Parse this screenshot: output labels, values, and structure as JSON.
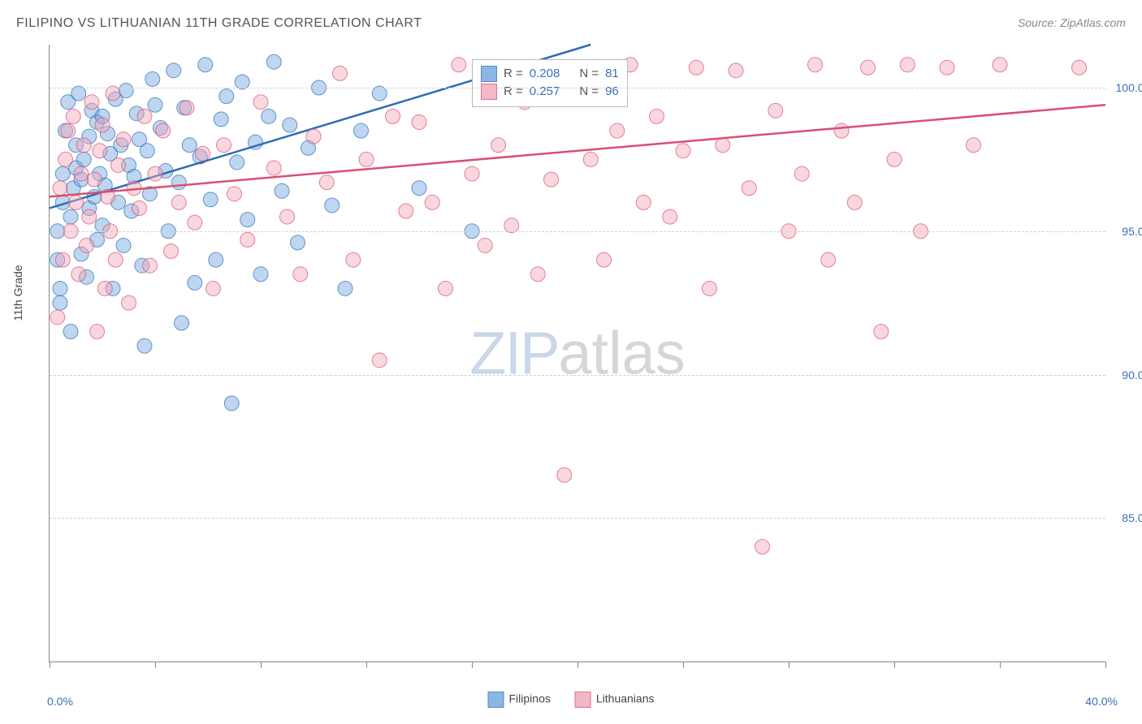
{
  "title": "FILIPINO VS LITHUANIAN 11TH GRADE CORRELATION CHART",
  "source": "Source: ZipAtlas.com",
  "watermark": {
    "zip": "ZIP",
    "atlas": "atlas"
  },
  "axis": {
    "y_title": "11th Grade",
    "x_min_label": "0.0%",
    "x_max_label": "40.0%",
    "y_labels": [
      {
        "v": 100.0,
        "text": "100.0%"
      },
      {
        "v": 95.0,
        "text": "95.0%"
      },
      {
        "v": 90.0,
        "text": "90.0%"
      },
      {
        "v": 85.0,
        "text": "85.0%"
      }
    ]
  },
  "legend": {
    "series1": "Filipinos",
    "series2": "Lithuanians"
  },
  "stats": {
    "s1": {
      "r_label": "R =",
      "r": "0.208",
      "n_label": "N =",
      "n": "81"
    },
    "s2": {
      "r_label": "R =",
      "r": "0.257",
      "n_label": "N =",
      "n": "96"
    }
  },
  "chart": {
    "type": "scatter",
    "xlim": [
      0,
      40
    ],
    "ylim": [
      80,
      101.5
    ],
    "x_ticks": [
      0,
      4,
      8,
      12,
      16,
      20,
      24,
      28,
      32,
      36,
      40
    ],
    "grid_y": [
      100,
      95,
      90,
      85
    ],
    "grid_color": "#d0d0d0",
    "background_color": "#ffffff",
    "label_color": "#3b6fb6",
    "marker_radius": 9,
    "marker_opacity": 0.45,
    "line_width": 2.5,
    "series": [
      {
        "name": "Filipinos",
        "fill": "#6fa4dd",
        "stroke": "#2f6db3",
        "trend": {
          "x1": 0,
          "y1": 95.8,
          "x2": 20.5,
          "y2": 101.5
        },
        "points": [
          [
            0.3,
            95.0
          ],
          [
            0.3,
            94.0
          ],
          [
            0.4,
            93.0
          ],
          [
            0.4,
            92.5
          ],
          [
            0.5,
            96.0
          ],
          [
            0.5,
            97.0
          ],
          [
            0.6,
            98.5
          ],
          [
            0.7,
            99.5
          ],
          [
            0.8,
            95.5
          ],
          [
            0.8,
            91.5
          ],
          [
            0.9,
            96.5
          ],
          [
            1.0,
            98.0
          ],
          [
            1.0,
            97.2
          ],
          [
            1.1,
            99.8
          ],
          [
            1.2,
            96.8
          ],
          [
            1.2,
            94.2
          ],
          [
            1.3,
            97.5
          ],
          [
            1.4,
            93.4
          ],
          [
            1.5,
            98.3
          ],
          [
            1.5,
            95.8
          ],
          [
            1.6,
            99.2
          ],
          [
            1.7,
            96.2
          ],
          [
            1.8,
            94.7
          ],
          [
            1.8,
            98.8
          ],
          [
            1.9,
            97.0
          ],
          [
            2.0,
            99.0
          ],
          [
            2.0,
            95.2
          ],
          [
            2.1,
            96.6
          ],
          [
            2.2,
            98.4
          ],
          [
            2.3,
            97.7
          ],
          [
            2.4,
            93.0
          ],
          [
            2.5,
            99.6
          ],
          [
            2.6,
            96.0
          ],
          [
            2.7,
            98.0
          ],
          [
            2.8,
            94.5
          ],
          [
            2.9,
            99.9
          ],
          [
            3.0,
            97.3
          ],
          [
            3.1,
            95.7
          ],
          [
            3.2,
            96.9
          ],
          [
            3.3,
            99.1
          ],
          [
            3.4,
            98.2
          ],
          [
            3.5,
            93.8
          ],
          [
            3.6,
            91.0
          ],
          [
            3.7,
            97.8
          ],
          [
            3.8,
            96.3
          ],
          [
            3.9,
            100.3
          ],
          [
            4.0,
            99.4
          ],
          [
            4.2,
            98.6
          ],
          [
            4.4,
            97.1
          ],
          [
            4.5,
            95.0
          ],
          [
            4.7,
            100.6
          ],
          [
            4.9,
            96.7
          ],
          [
            5.0,
            91.8
          ],
          [
            5.1,
            99.3
          ],
          [
            5.3,
            98.0
          ],
          [
            5.5,
            93.2
          ],
          [
            5.7,
            97.6
          ],
          [
            5.9,
            100.8
          ],
          [
            6.1,
            96.1
          ],
          [
            6.3,
            94.0
          ],
          [
            6.5,
            98.9
          ],
          [
            6.7,
            99.7
          ],
          [
            6.9,
            89.0
          ],
          [
            7.1,
            97.4
          ],
          [
            7.3,
            100.2
          ],
          [
            7.5,
            95.4
          ],
          [
            7.8,
            98.1
          ],
          [
            8.0,
            93.5
          ],
          [
            8.3,
            99.0
          ],
          [
            8.5,
            100.9
          ],
          [
            8.8,
            96.4
          ],
          [
            9.1,
            98.7
          ],
          [
            9.4,
            94.6
          ],
          [
            9.8,
            97.9
          ],
          [
            10.2,
            100.0
          ],
          [
            10.7,
            95.9
          ],
          [
            11.2,
            93.0
          ],
          [
            11.8,
            98.5
          ],
          [
            12.5,
            99.8
          ],
          [
            14.0,
            96.5
          ],
          [
            16.0,
            95.0
          ]
        ]
      },
      {
        "name": "Lithuanians",
        "fill": "#f2a6b8",
        "stroke": "#d94f72",
        "trend": {
          "x1": 0,
          "y1": 96.2,
          "x2": 40,
          "y2": 99.4
        },
        "points": [
          [
            0.3,
            92.0
          ],
          [
            0.4,
            96.5
          ],
          [
            0.5,
            94.0
          ],
          [
            0.6,
            97.5
          ],
          [
            0.7,
            98.5
          ],
          [
            0.8,
            95.0
          ],
          [
            0.9,
            99.0
          ],
          [
            1.0,
            96.0
          ],
          [
            1.1,
            93.5
          ],
          [
            1.2,
            97.0
          ],
          [
            1.3,
            98.0
          ],
          [
            1.4,
            94.5
          ],
          [
            1.5,
            95.5
          ],
          [
            1.6,
            99.5
          ],
          [
            1.7,
            96.8
          ],
          [
            1.8,
            91.5
          ],
          [
            1.9,
            97.8
          ],
          [
            2.0,
            98.7
          ],
          [
            2.1,
            93.0
          ],
          [
            2.2,
            96.2
          ],
          [
            2.3,
            95.0
          ],
          [
            2.4,
            99.8
          ],
          [
            2.5,
            94.0
          ],
          [
            2.6,
            97.3
          ],
          [
            2.8,
            98.2
          ],
          [
            3.0,
            92.5
          ],
          [
            3.2,
            96.5
          ],
          [
            3.4,
            95.8
          ],
          [
            3.6,
            99.0
          ],
          [
            3.8,
            93.8
          ],
          [
            4.0,
            97.0
          ],
          [
            4.3,
            98.5
          ],
          [
            4.6,
            94.3
          ],
          [
            4.9,
            96.0
          ],
          [
            5.2,
            99.3
          ],
          [
            5.5,
            95.3
          ],
          [
            5.8,
            97.7
          ],
          [
            6.2,
            93.0
          ],
          [
            6.6,
            98.0
          ],
          [
            7.0,
            96.3
          ],
          [
            7.5,
            94.7
          ],
          [
            8.0,
            99.5
          ],
          [
            8.5,
            97.2
          ],
          [
            9.0,
            95.5
          ],
          [
            9.5,
            93.5
          ],
          [
            10.0,
            98.3
          ],
          [
            10.5,
            96.7
          ],
          [
            11.0,
            100.5
          ],
          [
            11.5,
            94.0
          ],
          [
            12.0,
            97.5
          ],
          [
            12.5,
            90.5
          ],
          [
            13.0,
            99.0
          ],
          [
            13.5,
            95.7
          ],
          [
            14.0,
            98.8
          ],
          [
            14.5,
            96.0
          ],
          [
            15.0,
            93.0
          ],
          [
            15.5,
            100.8
          ],
          [
            16.0,
            97.0
          ],
          [
            16.5,
            94.5
          ],
          [
            17.0,
            98.0
          ],
          [
            17.5,
            95.2
          ],
          [
            18.0,
            99.5
          ],
          [
            18.5,
            93.5
          ],
          [
            19.0,
            96.8
          ],
          [
            19.5,
            86.5
          ],
          [
            20.0,
            100.6
          ],
          [
            20.5,
            97.5
          ],
          [
            21.0,
            94.0
          ],
          [
            21.5,
            98.5
          ],
          [
            22.0,
            100.8
          ],
          [
            22.5,
            96.0
          ],
          [
            23.0,
            99.0
          ],
          [
            23.5,
            95.5
          ],
          [
            24.0,
            97.8
          ],
          [
            24.5,
            100.7
          ],
          [
            25.0,
            93.0
          ],
          [
            25.5,
            98.0
          ],
          [
            26.0,
            100.6
          ],
          [
            26.5,
            96.5
          ],
          [
            27.0,
            84.0
          ],
          [
            27.5,
            99.2
          ],
          [
            28.0,
            95.0
          ],
          [
            28.5,
            97.0
          ],
          [
            29.0,
            100.8
          ],
          [
            29.5,
            94.0
          ],
          [
            30.0,
            98.5
          ],
          [
            30.5,
            96.0
          ],
          [
            31.0,
            100.7
          ],
          [
            31.5,
            91.5
          ],
          [
            32.0,
            97.5
          ],
          [
            32.5,
            100.8
          ],
          [
            33.0,
            95.0
          ],
          [
            34.0,
            100.7
          ],
          [
            35.0,
            98.0
          ],
          [
            36.0,
            100.8
          ],
          [
            39.0,
            100.7
          ]
        ]
      }
    ]
  }
}
